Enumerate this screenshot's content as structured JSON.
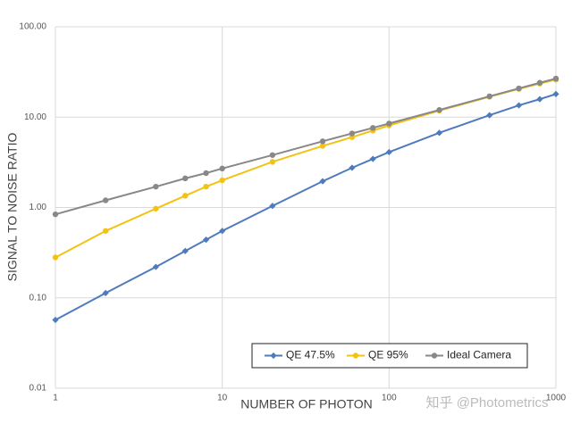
{
  "chart_data": {
    "type": "line",
    "y_label": "SIGNAL TO NOISE RATIO",
    "x_label": "NUMBER OF PHOTON",
    "watermark": "知乎 @Photometrics",
    "x_log": true,
    "y_log": true,
    "grid": true,
    "legend": "lower right",
    "x": [
      1,
      2,
      4,
      6,
      8,
      10,
      20,
      40,
      60,
      80,
      100,
      200,
      400,
      600,
      800,
      1000
    ],
    "series": [
      {
        "name": "QE 47.5%",
        "color": "#4f7bbd",
        "marker": "diamond",
        "values": [
          0.057,
          0.113,
          0.22,
          0.33,
          0.44,
          0.55,
          1.04,
          1.95,
          2.75,
          3.45,
          4.1,
          6.7,
          10.5,
          13.5,
          15.8,
          18
        ]
      },
      {
        "name": "QE 95%",
        "color": "#f2c314",
        "marker": "circle",
        "values": [
          0.28,
          0.55,
          0.97,
          1.35,
          1.7,
          2.0,
          3.2,
          4.8,
          6.0,
          7.1,
          8.1,
          11.8,
          16.8,
          20.5,
          23.5,
          26
        ]
      },
      {
        "name": "Ideal Camera",
        "color": "#888888",
        "marker": "circle",
        "values": [
          0.84,
          1.2,
          1.7,
          2.1,
          2.4,
          2.7,
          3.8,
          5.4,
          6.6,
          7.6,
          8.5,
          12,
          17,
          20.8,
          24,
          26.7
        ]
      }
    ],
    "xlim": [
      1,
      1000
    ],
    "xticks": [
      1,
      10,
      100,
      1000
    ],
    "ylim": [
      0.01,
      100
    ],
    "yticks": [
      {
        "value": 0.01,
        "label": "0.01"
      },
      {
        "value": 0.1,
        "label": "0.10"
      },
      {
        "value": 1,
        "label": "1.00"
      },
      {
        "value": 10,
        "label": "10.00"
      },
      {
        "value": 100,
        "label": "100.00"
      }
    ]
  }
}
